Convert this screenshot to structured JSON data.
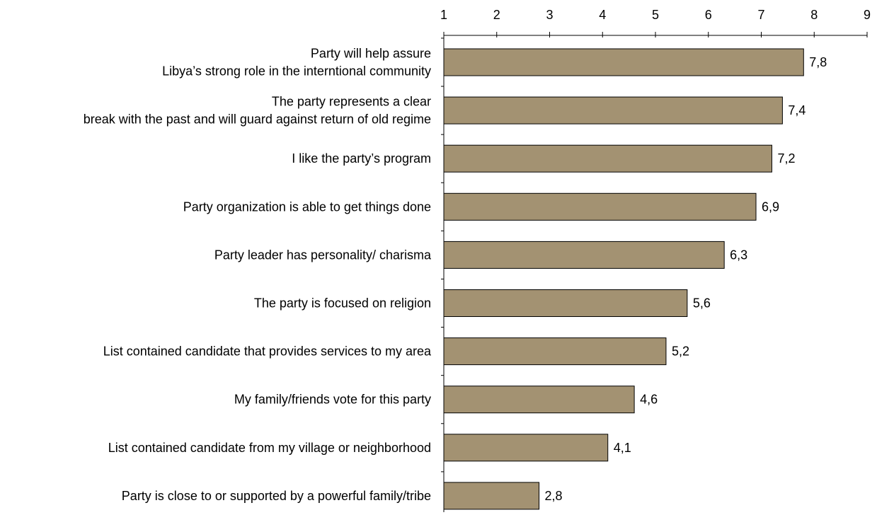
{
  "chart_data": {
    "type": "bar",
    "orientation": "horizontal",
    "categories": [
      [
        "Party will help assure",
        "Libya’s strong role in the interntional community"
      ],
      [
        "The party represents a clear",
        "break with the past and will guard against return of old regime"
      ],
      [
        "I like the party’s program"
      ],
      [
        "Party organization is able to get things done"
      ],
      [
        "Party leader has personality/ charisma"
      ],
      [
        "The party is focused on religion"
      ],
      [
        "List contained candidate that provides services to my area"
      ],
      [
        "My family/friends vote for this party"
      ],
      [
        "List contained candidate from my village or neighborhood"
      ],
      [
        "Party is close to or supported by a powerful family/tribe"
      ]
    ],
    "values": [
      7.8,
      7.4,
      7.2,
      6.9,
      6.3,
      5.6,
      5.2,
      4.6,
      4.1,
      2.8
    ],
    "value_labels": [
      "7,8",
      "7,4",
      "7,2",
      "6,9",
      "6,3",
      "5,6",
      "5,2",
      "4,6",
      "4,1",
      "2,8"
    ],
    "xlim": [
      1,
      9
    ],
    "xticks": [
      1,
      2,
      3,
      4,
      5,
      6,
      7,
      8,
      9
    ],
    "xtick_labels": [
      "1",
      "2",
      "3",
      "4",
      "5",
      "6",
      "7",
      "8",
      "9"
    ],
    "axis_position": "top",
    "grid": false,
    "legend": false,
    "colors": {
      "bar_fill": "#a39272",
      "bar_stroke": "#000000",
      "axis": "#000000",
      "text": "#000000"
    }
  }
}
